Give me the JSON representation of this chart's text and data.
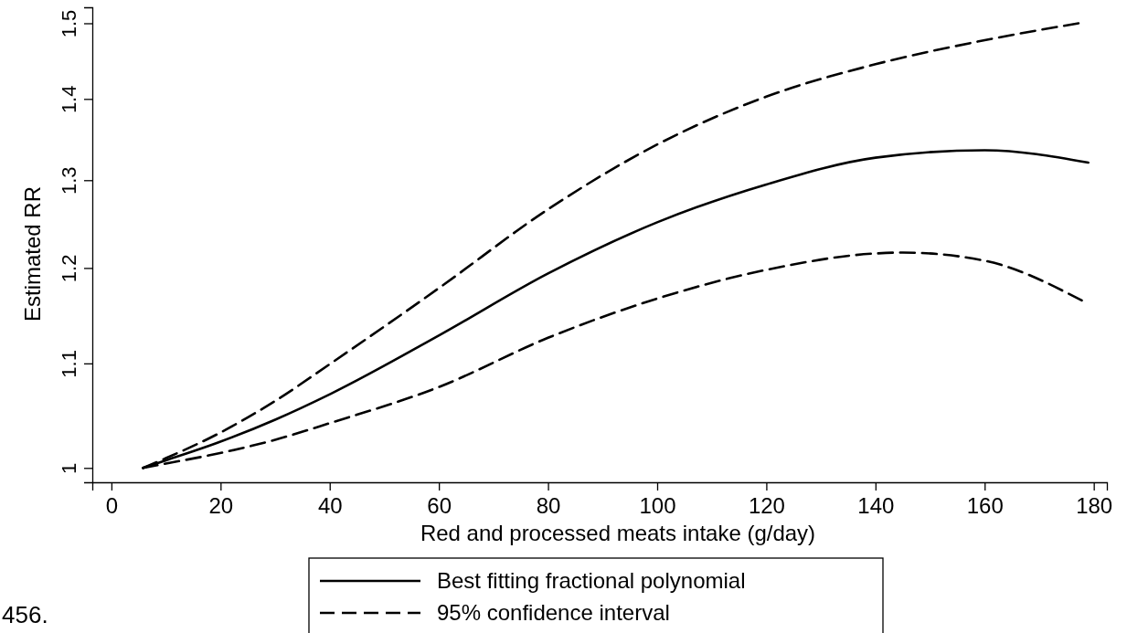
{
  "chart_data": {
    "type": "line",
    "xlabel": "Red and processed meats intake (g/day)",
    "ylabel": "Estimated RR",
    "log": "y",
    "xlim": [
      -3.5,
      182.4
    ],
    "ylim": [
      0.987,
      1.522
    ],
    "xticks": [
      0,
      20,
      40,
      60,
      80,
      100,
      120,
      140,
      160,
      180
    ],
    "yticks": [
      1,
      1.1,
      1.2,
      1.3,
      1.4,
      1.5
    ],
    "grid": false,
    "legend": "bottom",
    "marker": "none",
    "annotations": [
      "456."
    ],
    "series": [
      {
        "name": "Best fitting fractional polynomial",
        "color": "#000000",
        "line_style": "solid",
        "x": [
          5.8,
          10,
          19.3,
          30,
          40.2,
          60.2,
          80,
          100,
          120,
          140,
          160,
          179
        ],
        "values": [
          1,
          1.007,
          1.023,
          1.045,
          1.07,
          1.129,
          1.194,
          1.251,
          1.295,
          1.327,
          1.336,
          1.321
        ]
      },
      {
        "name": "95% confidence interval",
        "color": "#000000",
        "line_style": "dashed",
        "x": [
          5.8,
          10,
          19.3,
          30,
          40.2,
          60.2,
          80,
          100,
          120,
          140,
          160,
          177.2
        ],
        "values": [
          1,
          1.009,
          1.031,
          1.063,
          1.1,
          1.179,
          1.266,
          1.343,
          1.403,
          1.445,
          1.477,
          1.5
        ]
      },
      {
        "color": "#000000",
        "line_style": "dashed",
        "x": [
          5.8,
          10,
          19.3,
          30,
          40.2,
          60.2,
          80,
          100,
          120,
          140,
          145,
          160,
          177.8
        ],
        "values": [
          1,
          1.004,
          1.013,
          1.026,
          1.042,
          1.077,
          1.126,
          1.167,
          1.198,
          1.216,
          1.217,
          1.208,
          1.165
        ]
      }
    ]
  }
}
